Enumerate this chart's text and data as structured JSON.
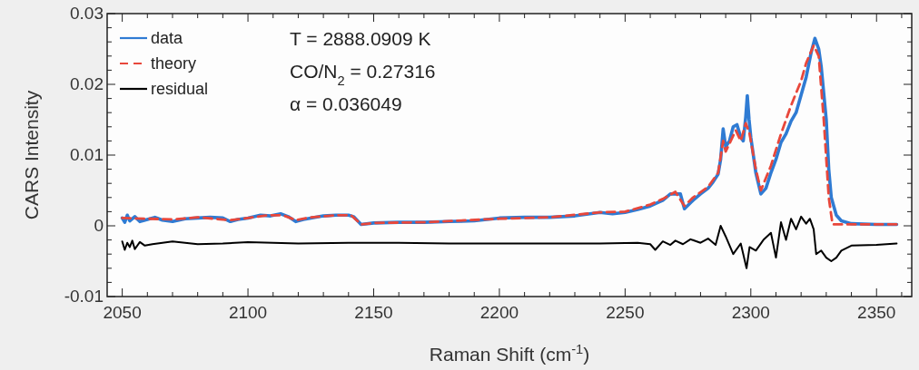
{
  "chart_data": {
    "type": "line",
    "xlabel": "Raman Shift (cm$^{-1}$)",
    "ylabel": "CARS Intensity",
    "xlim": [
      2044,
      2364
    ],
    "ylim": [
      -0.01,
      0.03
    ],
    "xticks": [
      2050,
      {
        "value": 2060,
        "label": null
      },
      {
        "value": 2070,
        "label": null
      },
      {
        "value": 2080,
        "label": null
      },
      {
        "value": 2090,
        "label": null
      },
      2100,
      {
        "value": 2110,
        "label": null
      },
      {
        "value": 2120,
        "label": null
      },
      {
        "value": 2130,
        "label": null
      },
      {
        "value": 2140,
        "label": null
      },
      2150,
      {
        "value": 2160,
        "label": null
      },
      {
        "value": 2170,
        "label": null
      },
      {
        "value": 2180,
        "label": null
      },
      {
        "value": 2190,
        "label": null
      },
      2200,
      {
        "value": 2210,
        "label": null
      },
      {
        "value": 2220,
        "label": null
      },
      {
        "value": 2230,
        "label": null
      },
      {
        "value": 2240,
        "label": null
      },
      2250,
      {
        "value": 2260,
        "label": null
      },
      {
        "value": 2270,
        "label": null
      },
      {
        "value": 2280,
        "label": null
      },
      {
        "value": 2290,
        "label": null
      },
      2300,
      {
        "value": 2310,
        "label": null
      },
      {
        "value": 2320,
        "label": null
      },
      {
        "value": 2330,
        "label": null
      },
      {
        "value": 2340,
        "label": null
      },
      2350,
      {
        "value": 2360,
        "label": null
      }
    ],
    "yticks": [
      -0.01,
      {
        "value": -0.008,
        "label": null
      },
      {
        "value": -0.006,
        "label": null
      },
      {
        "value": -0.004,
        "label": null
      },
      {
        "value": -0.002,
        "label": null
      },
      0,
      {
        "value": 0.002,
        "label": null
      },
      {
        "value": 0.004,
        "label": null
      },
      {
        "value": 0.006,
        "label": null
      },
      {
        "value": 0.008,
        "label": null
      },
      0.01,
      {
        "value": 0.012,
        "label": null
      },
      {
        "value": 0.014,
        "label": null
      },
      {
        "value": 0.016,
        "label": null
      },
      {
        "value": 0.018,
        "label": null
      },
      0.02,
      {
        "value": 0.022,
        "label": null
      },
      {
        "value": 0.024,
        "label": null
      },
      {
        "value": 0.026,
        "label": null
      },
      {
        "value": 0.028,
        "label": null
      },
      0.03
    ],
    "grid": false,
    "legend": "top left",
    "annotations": [
      "T = 2888.0909 K",
      "CO/N$_{2}$ = 0.27316",
      "α = 0.036049"
    ],
    "series": [
      {
        "name": "data",
        "color": "#2f7bd3",
        "line_style": "solid",
        "x": [
          2050,
          2051,
          2052,
          2053,
          2055,
          2057,
          2060,
          2063,
          2066,
          2070,
          2075,
          2080,
          2085,
          2090,
          2093,
          2096,
          2100,
          2105,
          2109,
          2113,
          2116,
          2119,
          2122,
          2125,
          2130,
          2135,
          2140,
          2142,
          2145,
          2150,
          2160,
          2170,
          2180,
          2190,
          2200,
          2210,
          2220,
          2230,
          2240,
          2245,
          2250,
          2255,
          2260,
          2265,
          2268,
          2272,
          2273.6,
          2277,
          2280,
          2283,
          2285,
          2287,
          2288,
          2289,
          2290,
          2291.5,
          2293,
          2294.5,
          2296,
          2297,
          2298,
          2298.6,
          2299.3,
          2300,
          2302,
          2304,
          2306,
          2308,
          2310,
          2312,
          2314,
          2316,
          2318,
          2320,
          2322,
          2324,
          2325.5,
          2327,
          2328,
          2330,
          2331,
          2332,
          2334,
          2336,
          2340,
          2350,
          2358
        ],
        "values": [
          0.0011,
          0.0005,
          0.0015,
          0.0007,
          0.0013,
          0.0006,
          0.0009,
          0.0012,
          0.0008,
          0.0006,
          0.001,
          0.0011,
          0.0012,
          0.0011,
          0.0006,
          0.0009,
          0.0011,
          0.0015,
          0.0014,
          0.0017,
          0.0013,
          0.0006,
          0.0009,
          0.0011,
          0.0014,
          0.0015,
          0.0015,
          0.0013,
          0.0002,
          0.0004,
          0.0005,
          0.0005,
          0.0006,
          0.0007,
          0.0011,
          0.0012,
          0.0012,
          0.0014,
          0.0019,
          0.0017,
          0.0019,
          0.0023,
          0.0028,
          0.0036,
          0.0045,
          0.0045,
          0.0024,
          0.0036,
          0.0045,
          0.0053,
          0.0062,
          0.0073,
          0.0094,
          0.0137,
          0.0112,
          0.012,
          0.014,
          0.0143,
          0.0125,
          0.012,
          0.0155,
          0.0184,
          0.015,
          0.0125,
          0.0075,
          0.0045,
          0.0053,
          0.0075,
          0.0094,
          0.0118,
          0.013,
          0.0148,
          0.016,
          0.0185,
          0.021,
          0.0245,
          0.0265,
          0.025,
          0.0225,
          0.015,
          0.008,
          0.004,
          0.0015,
          0.0007,
          0.0003,
          0.0002,
          0.0002
        ]
      },
      {
        "name": "theory",
        "color": "#e8473b",
        "line_style": "dashed",
        "x": [
          2050,
          2060,
          2070,
          2080,
          2093,
          2100,
          2108,
          2114,
          2119,
          2125,
          2135,
          2141,
          2145,
          2150,
          2170,
          2200,
          2220,
          2240,
          2250,
          2260,
          2265,
          2270,
          2273.6,
          2277,
          2283,
          2287,
          2289,
          2290,
          2294,
          2296,
          2298,
          2299.5,
          2302,
          2304,
          2308,
          2312,
          2316,
          2320,
          2322,
          2325,
          2327,
          2329,
          2331,
          2332.5,
          2340,
          2358
        ],
        "values": [
          0.0011,
          0.001,
          0.0009,
          0.0012,
          0.0008,
          0.0011,
          0.0015,
          0.0015,
          0.0008,
          0.0012,
          0.0015,
          0.0015,
          0.0002,
          0.0004,
          0.0005,
          0.001,
          0.0012,
          0.0019,
          0.002,
          0.003,
          0.0038,
          0.0048,
          0.0028,
          0.004,
          0.0055,
          0.0075,
          0.012,
          0.0105,
          0.0135,
          0.012,
          0.0145,
          0.013,
          0.008,
          0.005,
          0.0085,
          0.013,
          0.017,
          0.0205,
          0.023,
          0.0255,
          0.024,
          0.015,
          0.004,
          0.0002,
          0.0002,
          0.0002
        ]
      },
      {
        "name": "residual",
        "color": "#000000",
        "line_style": "solid",
        "x": [
          2050,
          2051,
          2052,
          2053,
          2054,
          2055,
          2057,
          2059,
          2062,
          2066,
          2070,
          2080,
          2090,
          2100,
          2120,
          2140,
          2160,
          2180,
          2200,
          2220,
          2240,
          2255,
          2260,
          2262,
          2265,
          2268,
          2270,
          2273,
          2276,
          2280,
          2283,
          2286,
          2288,
          2290,
          2293,
          2296,
          2298.3,
          2299.5,
          2302,
          2305,
          2308,
          2310,
          2312,
          2314,
          2316,
          2318,
          2320,
          2322,
          2323.5,
          2325,
          2326,
          2328,
          2330,
          2332,
          2334,
          2336,
          2340,
          2350,
          2358
        ],
        "values": [
          -0.0022,
          -0.0034,
          -0.0024,
          -0.003,
          -0.0021,
          -0.0033,
          -0.0023,
          -0.0028,
          -0.0026,
          -0.0024,
          -0.0022,
          -0.0026,
          -0.0025,
          -0.0023,
          -0.0025,
          -0.0024,
          -0.0024,
          -0.0025,
          -0.0025,
          -0.0025,
          -0.0025,
          -0.0024,
          -0.0026,
          -0.0034,
          -0.0022,
          -0.0027,
          -0.0021,
          -0.0026,
          -0.0019,
          -0.0024,
          -0.0018,
          -0.0027,
          0,
          -0.0015,
          -0.004,
          -0.0025,
          -0.006,
          -0.003,
          -0.0035,
          -0.002,
          -0.001,
          -0.0045,
          0.0005,
          -0.002,
          0.001,
          -0.0005,
          0.0013,
          0.0003,
          0.001,
          -0.0005,
          -0.004,
          -0.0035,
          -0.0045,
          -0.005,
          -0.0045,
          -0.0035,
          -0.0028,
          -0.0027,
          -0.0025
        ]
      }
    ]
  }
}
